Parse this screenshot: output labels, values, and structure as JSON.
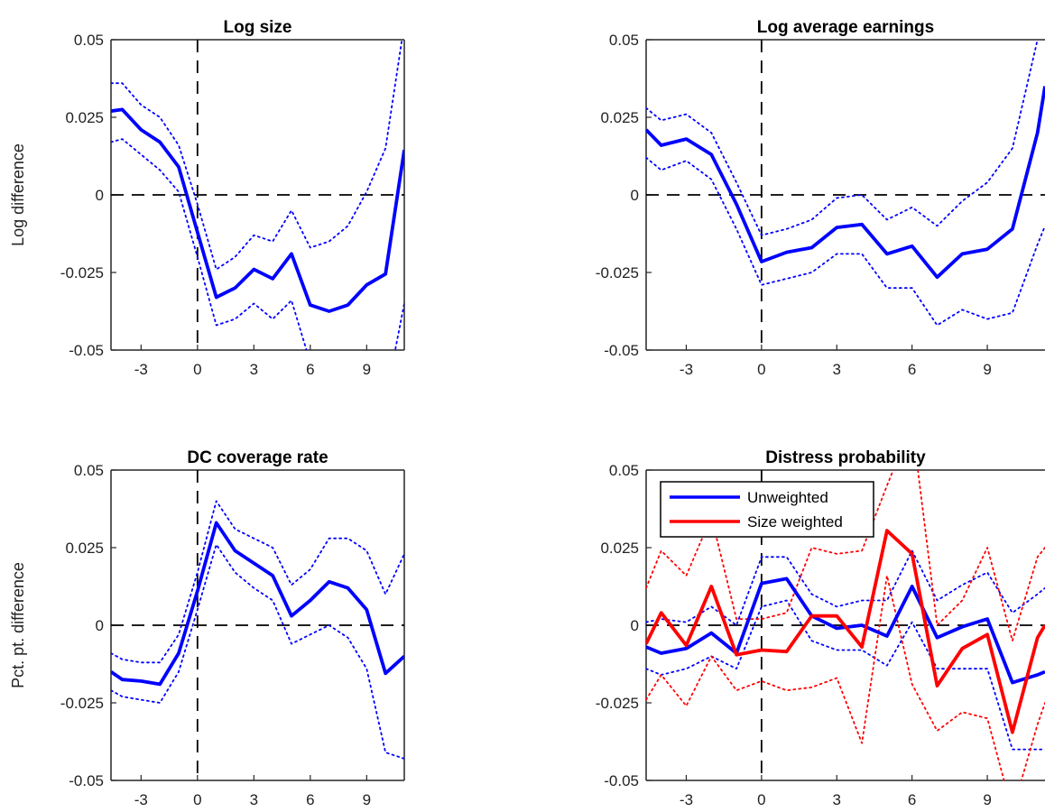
{
  "chart_data": [
    {
      "type": "line",
      "title": "Log size",
      "ylabel": "Log difference",
      "xlabel": "",
      "xlim": [
        -4.6,
        11
      ],
      "ylim": [
        -0.05,
        0.05
      ],
      "xticks": [
        "-3",
        "0",
        "3",
        "6",
        "9"
      ],
      "yticks": [
        "-0.05",
        "-0.025",
        "0",
        "0.025",
        "0.05"
      ],
      "vline_x": 0,
      "hline_y": 0,
      "x": [
        -4.6,
        -4,
        -3,
        -2,
        -1,
        0,
        1,
        2,
        3,
        4,
        5,
        6,
        7,
        8,
        9,
        10,
        11
      ],
      "series": [
        {
          "role": "estimate",
          "color": "#0000ff",
          "style": "solid",
          "values": [
            0.027,
            0.0275,
            0.021,
            0.017,
            0.009,
            -0.012,
            -0.033,
            -0.03,
            -0.024,
            -0.027,
            -0.019,
            -0.0355,
            -0.0375,
            -0.0355,
            -0.029,
            -0.0255,
            0.0145
          ]
        },
        {
          "role": "ci-upper",
          "color": "#0000ff",
          "style": "dotted",
          "values": [
            0.036,
            0.036,
            0.029,
            0.025,
            0.016,
            -0.003,
            -0.024,
            -0.02,
            -0.013,
            -0.015,
            -0.005,
            -0.017,
            -0.015,
            -0.01,
            0.001,
            0.015,
            0.055
          ]
        },
        {
          "role": "ci-lower",
          "color": "#0000ff",
          "style": "dotted",
          "values": [
            0.017,
            0.018,
            0.013,
            0.008,
            0.001,
            -0.02,
            -0.042,
            -0.04,
            -0.035,
            -0.04,
            -0.034,
            -0.054,
            -0.06,
            -0.061,
            -0.06,
            -0.066,
            -0.035
          ]
        }
      ]
    },
    {
      "type": "line",
      "title": "Log average earnings",
      "ylabel": "",
      "xlabel": "",
      "xlim": [
        -4.6,
        11.3
      ],
      "ylim": [
        -0.05,
        0.05
      ],
      "xticks": [
        "-3",
        "0",
        "3",
        "6",
        "9"
      ],
      "yticks": [
        "-0.05",
        "-0.025",
        "0",
        "0.025",
        "0.05"
      ],
      "vline_x": 0,
      "hline_y": 0,
      "x": [
        -4.6,
        -4,
        -3,
        -2,
        -1,
        0,
        1,
        2,
        3,
        4,
        5,
        6,
        7,
        8,
        9,
        10,
        11,
        11.3
      ],
      "series": [
        {
          "role": "estimate",
          "color": "#0000ff",
          "style": "solid",
          "values": [
            0.021,
            0.016,
            0.018,
            0.013,
            -0.003,
            -0.0215,
            -0.0185,
            -0.017,
            -0.0105,
            -0.0095,
            -0.019,
            -0.0165,
            -0.0265,
            -0.019,
            -0.0175,
            -0.011,
            0.02,
            0.035
          ]
        },
        {
          "role": "ci-upper",
          "color": "#0000ff",
          "style": "dotted",
          "values": [
            0.028,
            0.024,
            0.026,
            0.02,
            0.004,
            -0.013,
            -0.011,
            -0.008,
            -0.001,
            0.0,
            -0.008,
            -0.004,
            -0.01,
            -0.002,
            0.004,
            0.015,
            0.05,
            0.055
          ]
        },
        {
          "role": "ci-lower",
          "color": "#0000ff",
          "style": "dotted",
          "values": [
            0.012,
            0.008,
            0.011,
            0.005,
            -0.011,
            -0.029,
            -0.027,
            -0.025,
            -0.019,
            -0.019,
            -0.03,
            -0.03,
            -0.042,
            -0.037,
            -0.04,
            -0.038,
            -0.016,
            -0.01
          ]
        }
      ]
    },
    {
      "type": "line",
      "title": "DC coverage rate",
      "ylabel": "Pct. pt. difference",
      "xlabel": "",
      "xlim": [
        -4.6,
        11
      ],
      "ylim": [
        -0.05,
        0.05
      ],
      "xticks": [
        "-3",
        "0",
        "3",
        "6",
        "9"
      ],
      "yticks": [
        "-0.05",
        "-0.025",
        "0",
        "0.025",
        "0.05"
      ],
      "vline_x": 0,
      "hline_y": 0,
      "x": [
        -4.6,
        -4,
        -3,
        -2,
        -1,
        0,
        1,
        2,
        3,
        4,
        5,
        6,
        7,
        8,
        9,
        10,
        11
      ],
      "series": [
        {
          "role": "estimate",
          "color": "#0000ff",
          "style": "solid",
          "values": [
            -0.015,
            -0.0175,
            -0.018,
            -0.019,
            -0.009,
            0.011,
            0.033,
            0.024,
            0.02,
            0.016,
            0.003,
            0.008,
            0.014,
            0.012,
            0.005,
            -0.0155,
            -0.01
          ]
        },
        {
          "role": "ci-upper",
          "color": "#0000ff",
          "style": "dotted",
          "values": [
            -0.009,
            -0.011,
            -0.012,
            -0.012,
            -0.003,
            0.017,
            0.04,
            0.031,
            0.028,
            0.025,
            0.013,
            0.018,
            0.028,
            0.028,
            0.024,
            0.01,
            0.023
          ]
        },
        {
          "role": "ci-lower",
          "color": "#0000ff",
          "style": "dotted",
          "values": [
            -0.021,
            -0.023,
            -0.024,
            -0.025,
            -0.015,
            0.005,
            0.026,
            0.017,
            0.012,
            0.008,
            -0.006,
            -0.003,
            0.0,
            -0.004,
            -0.014,
            -0.041,
            -0.043
          ]
        }
      ]
    },
    {
      "type": "line",
      "title": "Distress probability",
      "ylabel": "",
      "xlabel": "",
      "xlim": [
        -4.6,
        11.3
      ],
      "ylim": [
        -0.05,
        0.05
      ],
      "xticks": [
        "-3",
        "0",
        "3",
        "6",
        "9"
      ],
      "yticks": [
        "-0.05",
        "-0.025",
        "0",
        "0.025",
        "0.05"
      ],
      "vline_x": 0,
      "hline_y": 0,
      "legend_position": "top-left",
      "x": [
        -4.6,
        -4,
        -3,
        -2,
        -1,
        0,
        1,
        2,
        3,
        4,
        5,
        6,
        7,
        8,
        9,
        10,
        11,
        11.3
      ],
      "series": [
        {
          "name": "Unweighted",
          "role": "estimate",
          "color": "#0000ff",
          "style": "solid",
          "values": [
            -0.007,
            -0.009,
            -0.0075,
            -0.0025,
            -0.009,
            0.0135,
            0.015,
            0.003,
            -0.001,
            0.0,
            -0.0035,
            0.0125,
            -0.004,
            -0.0005,
            0.002,
            -0.0185,
            -0.016,
            -0.015
          ]
        },
        {
          "name": "Size weighted",
          "role": "estimate",
          "color": "#ff0000",
          "style": "solid",
          "values": [
            -0.006,
            0.004,
            -0.0065,
            0.0125,
            -0.0095,
            -0.008,
            -0.0085,
            0.003,
            0.003,
            -0.007,
            0.0305,
            0.023,
            -0.0195,
            -0.0075,
            -0.003,
            -0.0345,
            -0.004,
            0.0
          ]
        },
        {
          "role": "ci-upper",
          "color": "#0000ff",
          "style": "dotted",
          "values": [
            0.001,
            0.002,
            0.001,
            0.006,
            0.0,
            0.022,
            0.022,
            0.01,
            0.006,
            0.008,
            0.008,
            0.024,
            0.008,
            0.013,
            0.017,
            0.004,
            0.01,
            0.012
          ]
        },
        {
          "role": "ci-lower",
          "color": "#0000ff",
          "style": "dotted",
          "values": [
            -0.014,
            -0.016,
            -0.014,
            -0.01,
            -0.014,
            0.006,
            0.008,
            -0.005,
            -0.008,
            -0.008,
            -0.013,
            0.001,
            -0.014,
            -0.014,
            -0.014,
            -0.04,
            -0.04,
            -0.04
          ]
        },
        {
          "role": "ci-upper",
          "color": "#ff0000",
          "style": "dotted",
          "values": [
            0.012,
            0.024,
            0.016,
            0.035,
            0.002,
            0.002,
            0.004,
            0.025,
            0.023,
            0.024,
            0.045,
            0.065,
            0.0,
            0.008,
            0.025,
            -0.005,
            0.022,
            0.025
          ]
        },
        {
          "role": "ci-lower",
          "color": "#ff0000",
          "style": "dotted",
          "values": [
            -0.024,
            -0.016,
            -0.026,
            -0.01,
            -0.021,
            -0.018,
            -0.021,
            -0.02,
            -0.017,
            -0.038,
            0.016,
            -0.019,
            -0.034,
            -0.028,
            -0.03,
            -0.06,
            -0.032,
            -0.025
          ]
        }
      ]
    }
  ]
}
